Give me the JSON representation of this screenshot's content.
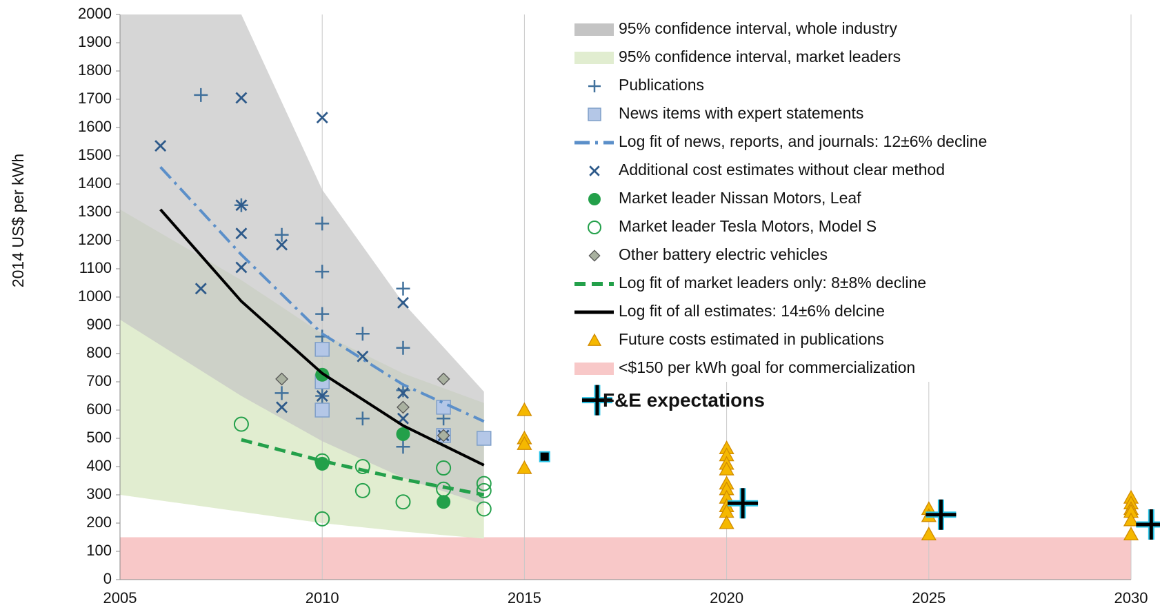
{
  "chart_data": {
    "type": "scatter",
    "ylabel": "2014 US$ per kWh",
    "xlim": [
      2005,
      2030
    ],
    "ylim": [
      0,
      2000
    ],
    "xticks": [
      2005,
      2010,
      2015,
      2020,
      2025,
      2030
    ],
    "yticks": [
      0,
      100,
      200,
      300,
      400,
      500,
      600,
      700,
      800,
      900,
      1000,
      1100,
      1200,
      1300,
      1400,
      1500,
      1600,
      1700,
      1800,
      1900,
      2000
    ],
    "grid": "x",
    "legend": "upper right",
    "series": [
      {
        "name": "95% confidence interval, whole industry",
        "marker": "band",
        "color": "#c4c4c4",
        "x": [
          2005,
          2008,
          2010,
          2012,
          2014
        ],
        "values": [
          2000,
          2000,
          1380,
          980,
          665
        ],
        "lower": [
          920,
          650,
          490,
          360,
          265
        ]
      },
      {
        "name": "95% confidence interval, market leaders",
        "marker": "band",
        "color": "#e1edd0",
        "x": [
          2005,
          2008,
          2010,
          2012,
          2014
        ],
        "values": [
          1310,
          1060,
          870,
          730,
          625
        ],
        "lower": [
          300,
          240,
          200,
          170,
          145
        ]
      },
      {
        "name": "Publications",
        "marker": "plus",
        "color": "#41719c",
        "x": [
          2007,
          2008,
          2009,
          2009,
          2010,
          2010,
          2010,
          2010,
          2010,
          2011,
          2011,
          2012,
          2012,
          2012,
          2012,
          2013
        ],
        "values": [
          1715,
          1325,
          1220,
          660,
          1260,
          1090,
          940,
          860,
          650,
          870,
          570,
          1030,
          820,
          670,
          470,
          570
        ]
      },
      {
        "name": "News items with expert statements",
        "marker": "square",
        "color": "#b4c7e7",
        "x": [
          2010,
          2010,
          2010,
          2013,
          2013,
          2014
        ],
        "values": [
          815,
          700,
          600,
          610,
          510,
          500
        ]
      },
      {
        "name": "Log fit of news, reports, and journals: 12±6% decline",
        "marker": "line-dashdot",
        "color": "#5b8fc9",
        "x": [
          2006,
          2008,
          2010,
          2012,
          2014
        ],
        "values": [
          1460,
          1150,
          870,
          690,
          560
        ]
      },
      {
        "name": "Additional cost estimates without clear method",
        "marker": "x",
        "color": "#2e5a8a",
        "x": [
          2006,
          2007,
          2008,
          2008,
          2008,
          2008,
          2009,
          2009,
          2010,
          2010,
          2011,
          2012,
          2012,
          2012,
          2013
        ],
        "values": [
          1535,
          1030,
          1705,
          1325,
          1225,
          1105,
          1185,
          610,
          1635,
          650,
          790,
          980,
          660,
          570,
          510
        ]
      },
      {
        "name": "Market leader Nissan Motors, Leaf",
        "marker": "circle",
        "color": "#23a04a",
        "x": [
          2010,
          2010,
          2012,
          2013
        ],
        "values": [
          725,
          410,
          515,
          275
        ]
      },
      {
        "name": "Market leader Tesla Motors, Model S",
        "marker": "circle-open",
        "color": "#23a04a",
        "x": [
          2008,
          2010,
          2010,
          2011,
          2011,
          2012,
          2013,
          2013,
          2014,
          2014,
          2014
        ],
        "values": [
          550,
          420,
          215,
          400,
          315,
          275,
          395,
          320,
          340,
          315,
          250
        ]
      },
      {
        "name": "Other battery electric vehicles",
        "marker": "diamond",
        "color": "#a9b1a0",
        "x": [
          2009,
          2012,
          2013,
          2013
        ],
        "values": [
          710,
          610,
          710,
          510
        ]
      },
      {
        "name": "Log fit of market leaders only: 8±8% decline",
        "marker": "line-dashed",
        "color": "#23a04a",
        "x": [
          2008,
          2010,
          2012,
          2014
        ],
        "values": [
          495,
          420,
          355,
          300
        ]
      },
      {
        "name": "Log fit of all estimates: 14±6% delcine",
        "marker": "line",
        "color": "#000000",
        "x": [
          2006,
          2008,
          2010,
          2012,
          2014
        ],
        "values": [
          1310,
          985,
          730,
          545,
          405
        ]
      },
      {
        "name": "Future costs estimated in publications",
        "marker": "triangle",
        "color": "#f5b800",
        "x": [
          2015,
          2015,
          2015,
          2015,
          2020,
          2020,
          2020,
          2020,
          2020,
          2020,
          2020,
          2020,
          2020,
          2020,
          2025,
          2025,
          2025,
          2030,
          2030,
          2030,
          2030,
          2030,
          2030
        ],
        "values": [
          600,
          500,
          480,
          395,
          465,
          440,
          410,
          390,
          340,
          320,
          290,
          260,
          240,
          200,
          250,
          225,
          160,
          290,
          270,
          250,
          240,
          210,
          160
        ]
      },
      {
        "name": "<$150 per kWh goal for commercialization",
        "marker": "band",
        "color": "#f8c8c8",
        "x": [
          2005,
          2030
        ],
        "values": [
          150,
          150
        ],
        "lower": [
          0,
          0
        ]
      }
    ],
    "annotation": {
      "text": "F&E expectations",
      "x": [
        2016.8,
        2015.5,
        2020.4,
        2025.3,
        2030.5
      ],
      "values": [
        635,
        435,
        270,
        230,
        195
      ]
    }
  }
}
